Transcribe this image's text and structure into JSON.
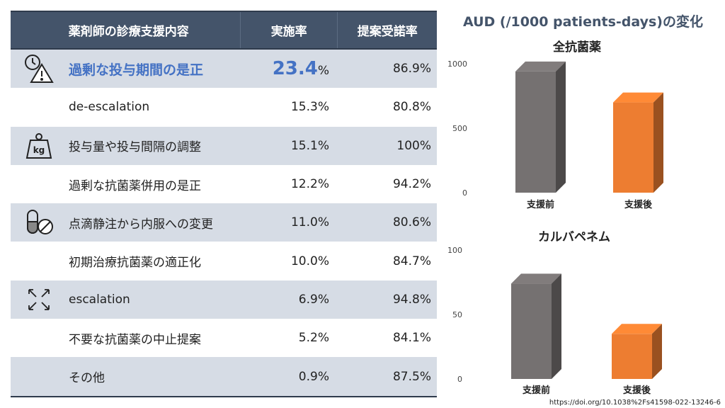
{
  "table": {
    "headers": {
      "item": "薬剤師の診療支援内容",
      "rate": "実施率",
      "acceptance": "提案受諾率"
    },
    "rows": [
      {
        "icon": "clock-warning-icon",
        "item": "過剰な投与期間の是正",
        "rate_value": "23.4",
        "rate_unit": "%",
        "acceptance": "86.9%"
      },
      {
        "icon": "",
        "item": "de-escalation",
        "rate": "15.3%",
        "acceptance": "80.8%"
      },
      {
        "icon": "weight-kg-icon",
        "item": "投与量や投与間隔の調整",
        "rate": "15.1%",
        "acceptance": "100%"
      },
      {
        "icon": "",
        "item": "過剰な抗菌薬併用の是正",
        "rate": "12.2%",
        "acceptance": "94.2%"
      },
      {
        "icon": "pill-no-icon",
        "item": "点滴静注から内服への変更",
        "rate": "11.0%",
        "acceptance": "80.6%"
      },
      {
        "icon": "",
        "item": "初期治療抗菌薬の適正化",
        "rate": "10.0%",
        "acceptance": "84.7%"
      },
      {
        "icon": "expand-arrows-icon",
        "item": "escalation",
        "rate": "6.9%",
        "acceptance": "94.8%"
      },
      {
        "icon": "",
        "item": "不要な抗菌薬の中止提案",
        "rate": "5.2%",
        "acceptance": "84.1%"
      },
      {
        "icon": "",
        "item": "その他",
        "rate": "0.9%",
        "acceptance": "87.5%"
      }
    ]
  },
  "title": "AUD (/1000 patients-days)の変化",
  "chart_data": [
    {
      "type": "bar",
      "title": "全抗菌薬",
      "categories": [
        "支援前",
        "支援後"
      ],
      "values": [
        940,
        700
      ],
      "yticks": [
        0,
        500,
        1000
      ],
      "ylim": [
        0,
        1000
      ],
      "grid": false,
      "colors": [
        "#757171",
        "#ed7d31"
      ]
    },
    {
      "type": "bar",
      "title": "カルバペネム",
      "categories": [
        "支援前",
        "支援後"
      ],
      "values": [
        74,
        35
      ],
      "yticks": [
        0,
        50,
        100
      ],
      "ylim": [
        0,
        100
      ],
      "grid": false,
      "colors": [
        "#757171",
        "#ed7d31"
      ]
    }
  ],
  "doi": "https://doi.org/10.1038%2Fs41598-022-13246-6"
}
